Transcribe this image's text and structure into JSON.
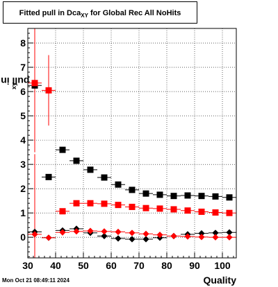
{
  "chart_data": {
    "type": "scatter",
    "title_main": "Fitted pull in Dca",
    "title_sub": "XY",
    "title_tail": " for Global Rec All NoHits",
    "xlabel": "Quality",
    "ylabel_main": "pull in Dca",
    "ylabel_sub": "xy",
    "xlim": [
      30,
      105
    ],
    "ylim": [
      -0.85,
      8.6
    ],
    "x_ticks": [
      30,
      40,
      50,
      60,
      70,
      80,
      90,
      100
    ],
    "y_ticks": [
      0,
      1,
      2,
      3,
      4,
      5,
      6,
      7,
      8
    ],
    "grid": true,
    "x": [
      32.5,
      37.5,
      42.5,
      47.5,
      52.5,
      57.5,
      62.5,
      67.5,
      72.5,
      77.5,
      82.5,
      87.5,
      92.5,
      97.5,
      102.5
    ],
    "series": [
      {
        "color": "#000000",
        "marker": "square",
        "values": [
          6.25,
          2.48,
          3.6,
          3.15,
          2.78,
          2.46,
          2.17,
          1.95,
          1.8,
          1.75,
          1.7,
          1.72,
          1.7,
          1.68,
          1.64
        ],
        "errors": [
          0,
          0,
          0.1,
          0.08,
          0.06,
          0.05,
          0.05,
          0.04,
          0.04,
          0.04,
          0.04,
          0.04,
          0.04,
          0.04,
          0.04
        ]
      },
      {
        "color": "#ff0000",
        "marker": "square",
        "values": [
          6.35,
          6.05,
          1.07,
          1.4,
          1.4,
          1.38,
          1.33,
          1.25,
          1.2,
          1.18,
          1.15,
          1.1,
          1.05,
          1.02,
          1.0
        ],
        "errors": [
          2.85,
          1.45,
          0.08,
          0.06,
          0.05,
          0.05,
          0.05,
          0.04,
          0.04,
          0.04,
          0.04,
          0.04,
          0.04,
          0.04,
          0.04
        ]
      },
      {
        "color": "#000000",
        "marker": "diamond",
        "values": [
          0.22,
          -0.02,
          0.28,
          0.35,
          0.18,
          0.05,
          -0.05,
          -0.08,
          -0.08,
          -0.02,
          0.05,
          0.12,
          0.16,
          0.18,
          0.2
        ],
        "errors": [
          0,
          0,
          0.05,
          0.04,
          0.03,
          0.03,
          0.03,
          0.03,
          0.03,
          0.03,
          0.03,
          0.03,
          0.03,
          0.03,
          0.03
        ]
      },
      {
        "color": "#ff0000",
        "marker": "diamond",
        "values": [
          0.12,
          -0.02,
          0.2,
          0.24,
          0.26,
          0.24,
          0.22,
          0.18,
          0.14,
          0.1,
          0.05,
          0.03,
          0.01,
          0.0,
          0.0
        ],
        "errors": [
          3.3,
          0,
          0.04,
          0.03,
          0.03,
          0.03,
          0.03,
          0.03,
          0.03,
          0.03,
          0.03,
          0.03,
          0.03,
          0.03,
          0.03
        ]
      }
    ]
  },
  "footer": {
    "timestamp": "Mon Oct 21 08:49:11 2024"
  }
}
